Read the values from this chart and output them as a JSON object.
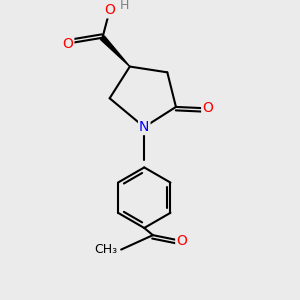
{
  "bg_color": "#ebebeb",
  "atom_colors": {
    "C": "#000000",
    "O": "#ff0000",
    "N": "#0000ff",
    "H": "#808080"
  },
  "bond_color": "#000000",
  "bond_width": 1.5,
  "font_size_atoms": 10,
  "font_size_h": 9
}
